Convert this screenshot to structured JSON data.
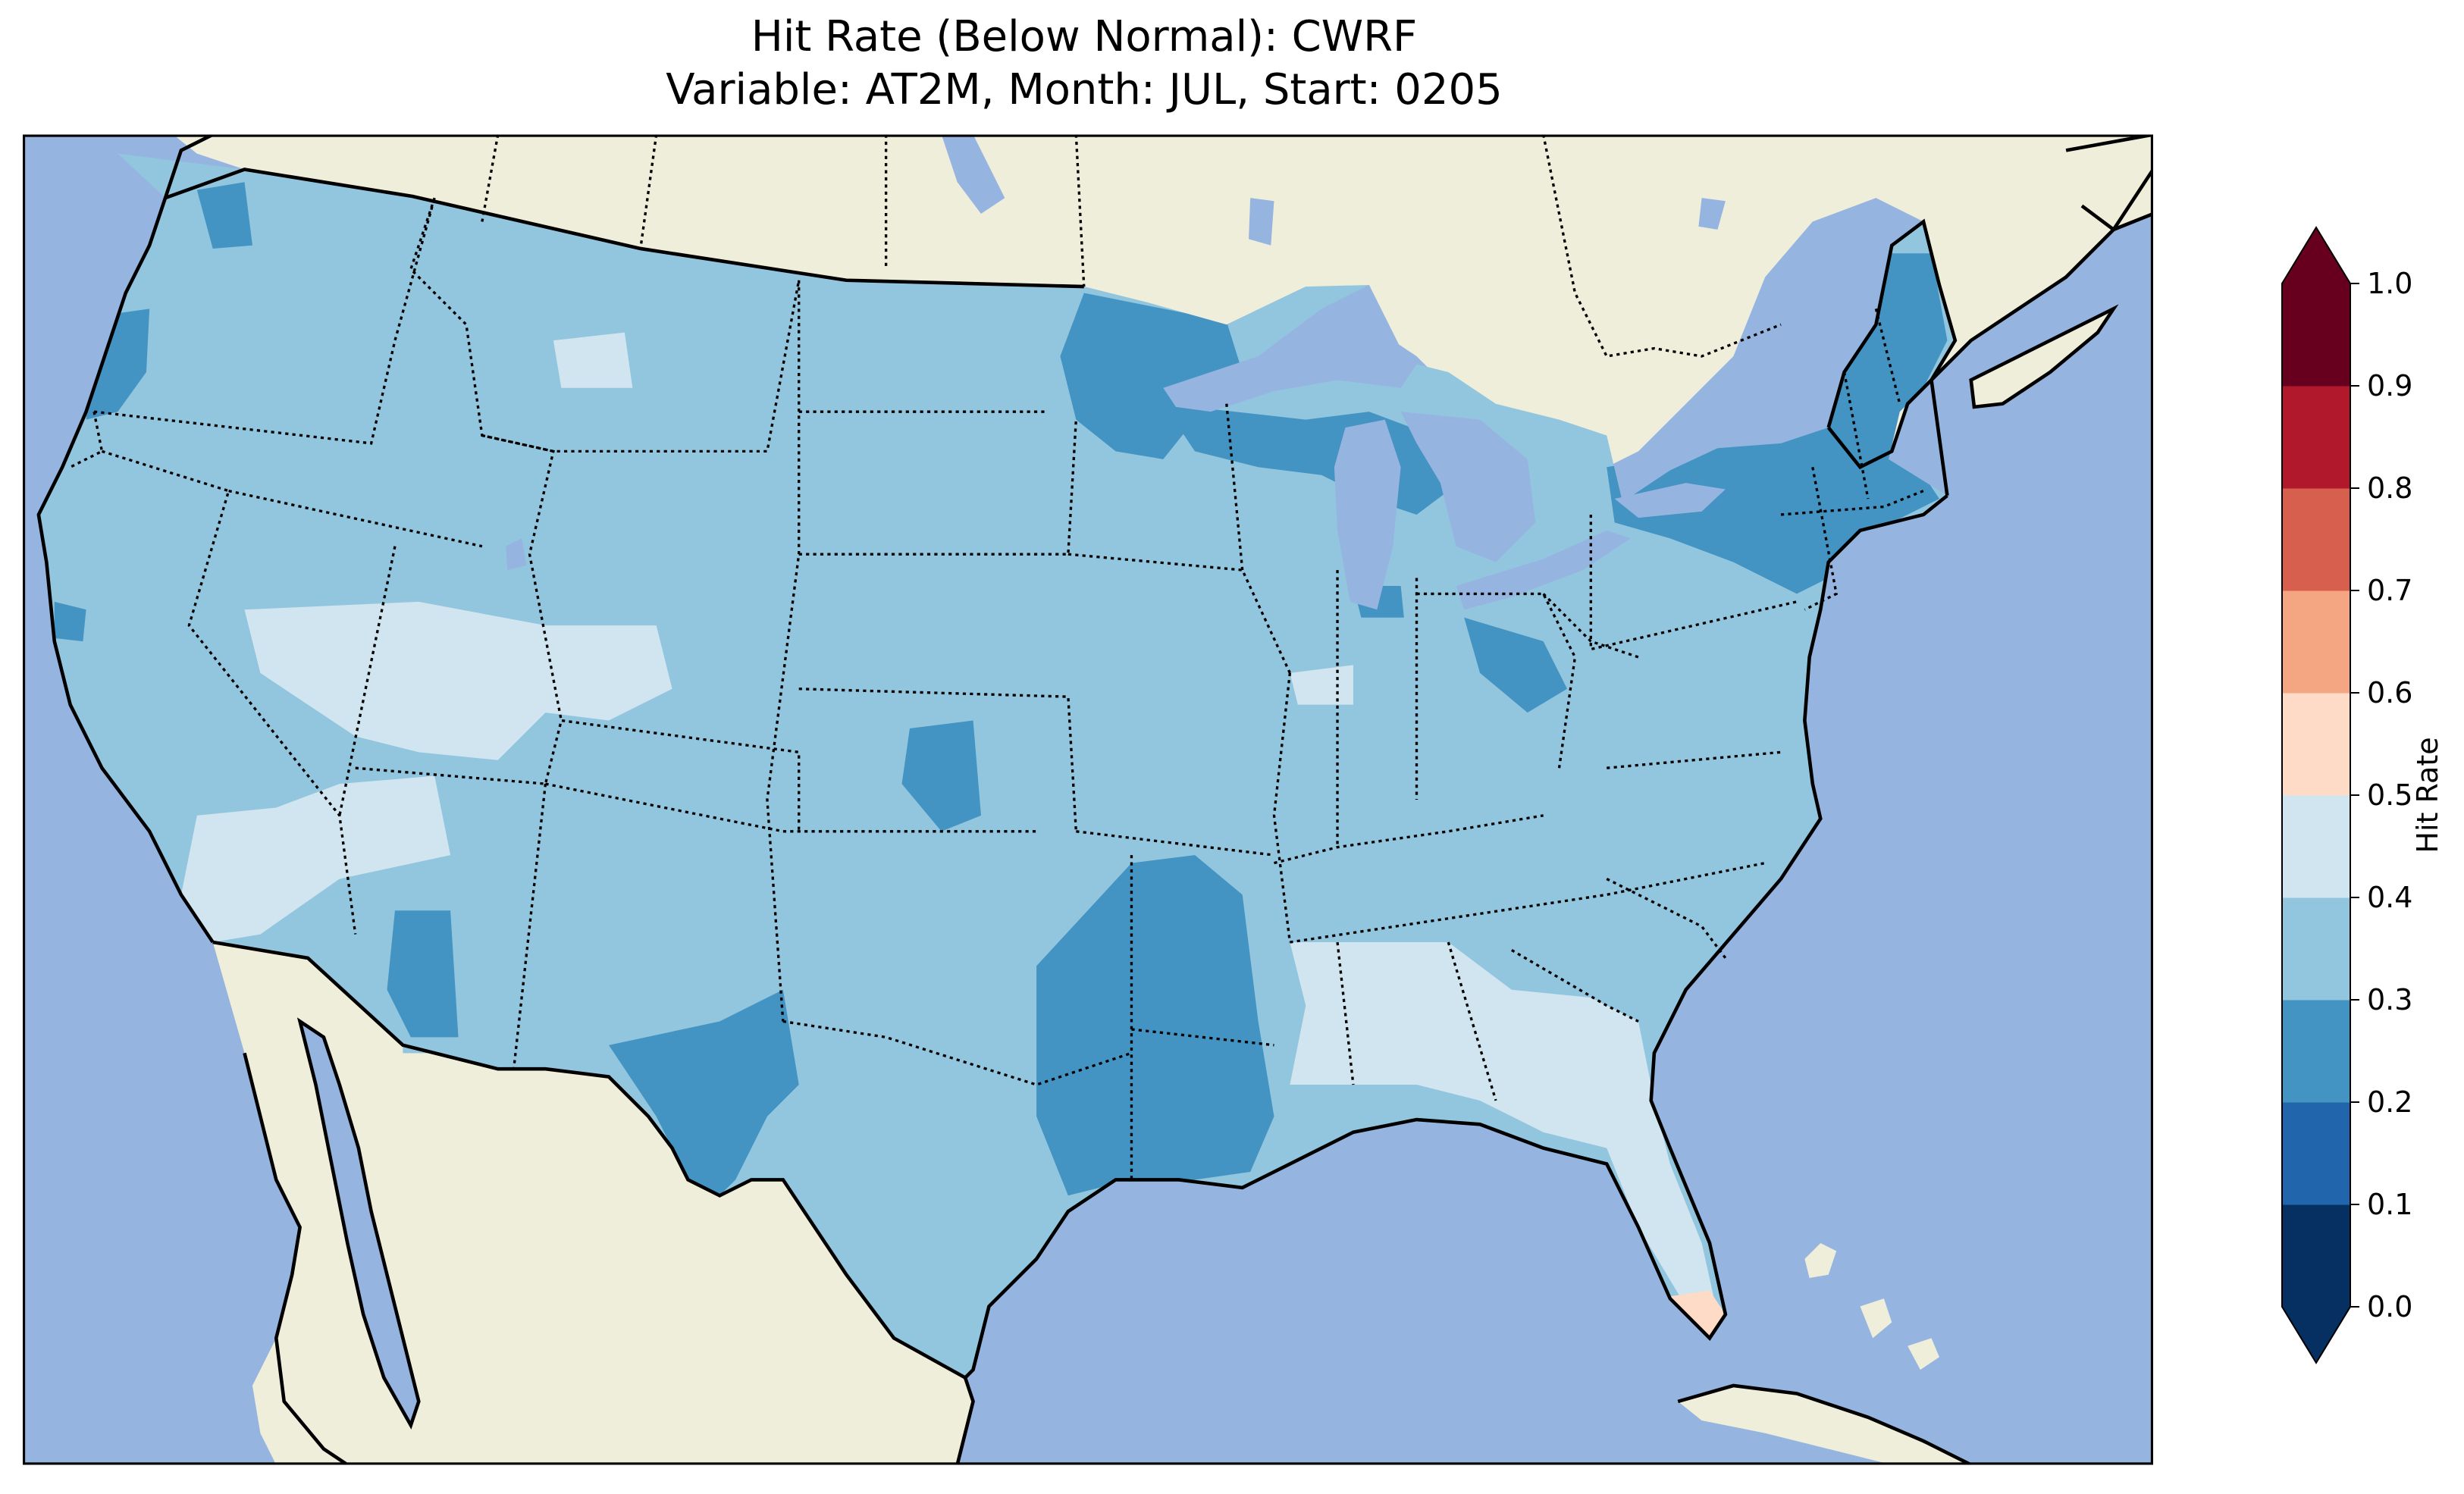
{
  "figure": {
    "title_line1": "Hit Rate (Below Normal): CWRF",
    "title_line2": "Variable: AT2M, Month: JUL, Start: 0205"
  },
  "map": {
    "colors": {
      "ocean": "#96b4e0",
      "land_outside": "#efeedb",
      "lakes": "#96b4e0",
      "coastline": "#000000",
      "state_borders": "#000000"
    },
    "layers": [
      "ocean",
      "land",
      "lakes",
      "coastline",
      "country borders",
      "state borders (dotted)"
    ],
    "field_classes_present": [
      "0.2-0.3",
      "0.3-0.4",
      "0.4-0.5",
      "0.5-0.6"
    ],
    "dominant_class": "0.3-0.4"
  },
  "colorbar": {
    "label": "Hit Rate",
    "ticks": [
      "0.0",
      "0.1",
      "0.2",
      "0.3",
      "0.4",
      "0.5",
      "0.6",
      "0.7",
      "0.8",
      "0.9",
      "1.0"
    ],
    "extend": "both",
    "bins": [
      {
        "range": "0.0-0.1",
        "color": "#053061"
      },
      {
        "range": "0.1-0.2",
        "color": "#2166ac"
      },
      {
        "range": "0.2-0.3",
        "color": "#4393c3"
      },
      {
        "range": "0.3-0.4",
        "color": "#92c5de"
      },
      {
        "range": "0.4-0.5",
        "color": "#d1e5f0"
      },
      {
        "range": "0.5-0.6",
        "color": "#fddbc7"
      },
      {
        "range": "0.6-0.7",
        "color": "#f4a582"
      },
      {
        "range": "0.7-0.8",
        "color": "#d6604d"
      },
      {
        "range": "0.8-0.9",
        "color": "#b2182b"
      },
      {
        "range": "0.9-1.0",
        "color": "#67001f"
      }
    ],
    "under_color": "#053061",
    "over_color": "#67001f"
  }
}
